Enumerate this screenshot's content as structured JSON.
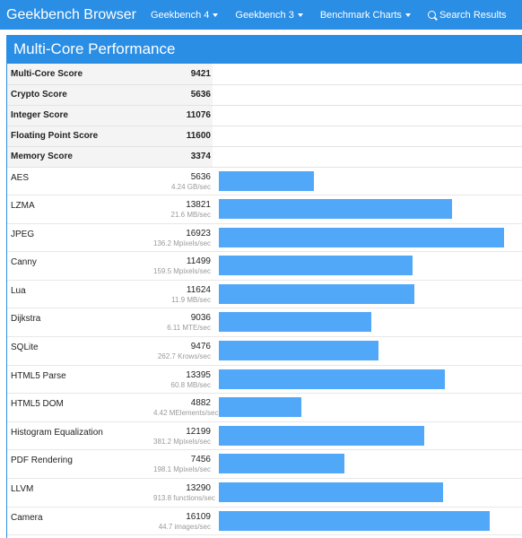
{
  "nav": {
    "brand": "Geekbench Browser",
    "items": [
      {
        "label": "Geekbench 4",
        "caret": true
      },
      {
        "label": "Geekbench 3",
        "caret": true
      },
      {
        "label": "Benchmark Charts",
        "caret": true
      }
    ],
    "search_label": "Search Results",
    "color": "#2a8ee5"
  },
  "panel": {
    "title": "Multi-Core Performance"
  },
  "summary": [
    {
      "name": "Multi-Core Score",
      "score": "9421"
    },
    {
      "name": "Crypto Score",
      "score": "5636"
    },
    {
      "name": "Integer Score",
      "score": "11076"
    },
    {
      "name": "Floating Point Score",
      "score": "11600"
    },
    {
      "name": "Memory Score",
      "score": "3374"
    }
  ],
  "benchmarks": [
    {
      "name": "AES",
      "score": "5636",
      "unit": "4.24 GB/sec",
      "value": 5636
    },
    {
      "name": "LZMA",
      "score": "13821",
      "unit": "21.6 MB/sec",
      "value": 13821
    },
    {
      "name": "JPEG",
      "score": "16923",
      "unit": "136.2 Mpixels/sec",
      "value": 16923
    },
    {
      "name": "Canny",
      "score": "11499",
      "unit": "159.5 Mpixels/sec",
      "value": 11499
    },
    {
      "name": "Lua",
      "score": "11624",
      "unit": "11.9 MB/sec",
      "value": 11624
    },
    {
      "name": "Dijkstra",
      "score": "9036",
      "unit": "6.11 MTE/sec",
      "value": 9036
    },
    {
      "name": "SQLite",
      "score": "9476",
      "unit": "262.7 Krows/sec",
      "value": 9476
    },
    {
      "name": "HTML5 Parse",
      "score": "13395",
      "unit": "60.8 MB/sec",
      "value": 13395
    },
    {
      "name": "HTML5 DOM",
      "score": "4882",
      "unit": "4.42 MElements/sec",
      "value": 4882
    },
    {
      "name": "Histogram Equalization",
      "score": "12199",
      "unit": "381.2 Mpixels/sec",
      "value": 12199
    },
    {
      "name": "PDF Rendering",
      "score": "7456",
      "unit": "198.1 Mpixels/sec",
      "value": 7456
    },
    {
      "name": "LLVM",
      "score": "13290",
      "unit": "913.8 functions/sec",
      "value": 13290
    },
    {
      "name": "Camera",
      "score": "16109",
      "unit": "44.7 images/sec",
      "value": 16109
    }
  ],
  "bar_color": "#52a8f8"
}
